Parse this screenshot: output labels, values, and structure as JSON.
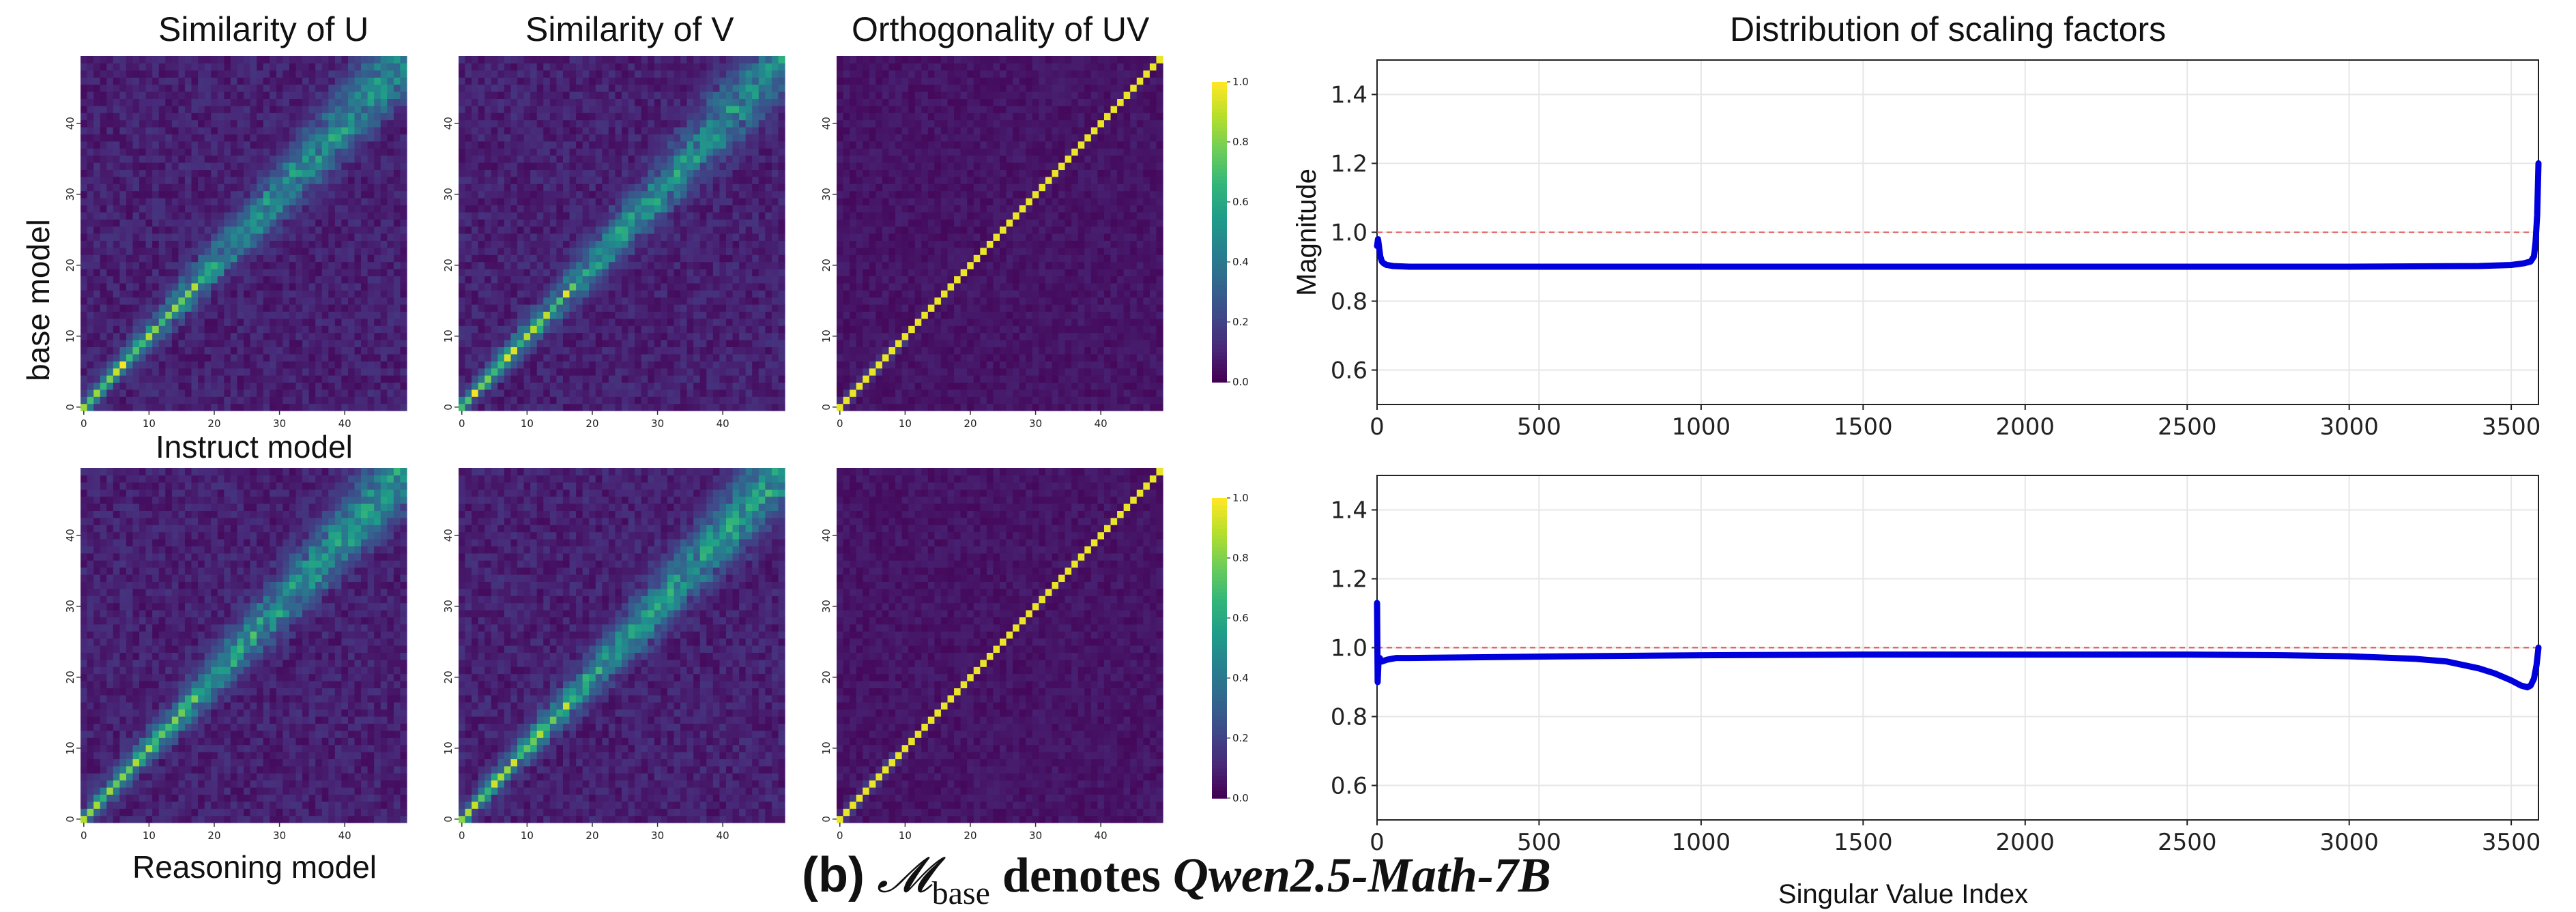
{
  "colorbar_scale": {
    "ticks": [
      "0.0",
      "0.2",
      "0.4",
      "0.6",
      "0.8",
      "1.0"
    ]
  },
  "labels": {
    "row1": "base model",
    "row2": "Instruct model",
    "row3": "Reasoning model"
  },
  "caption": {
    "prefix": "(b)",
    "symbol": "𝓜",
    "subscript": "base",
    "mid": "denotes",
    "model": "Qwen2.5-Math-7B"
  },
  "chart_data": [
    {
      "type": "heatmap",
      "id": "hm_u_top",
      "title": "Similarity of U",
      "ylabel": "base model",
      "xlabel": "",
      "size": 50,
      "xticks": [
        0,
        10,
        20,
        30,
        40
      ],
      "yticks": [
        0,
        10,
        20,
        30,
        40
      ],
      "range": [
        0,
        1
      ],
      "colormap": "viridis",
      "pattern": "noisy diagonal",
      "diagonal_strength": 0.55
    },
    {
      "type": "heatmap",
      "id": "hm_v_top",
      "title": "Similarity of V",
      "size": 50,
      "xticks": [
        0,
        10,
        20,
        30,
        40
      ],
      "yticks": [
        0,
        10,
        20,
        30,
        40
      ],
      "range": [
        0,
        1
      ],
      "colormap": "viridis",
      "pattern": "noisy diagonal",
      "diagonal_strength": 0.55
    },
    {
      "type": "heatmap",
      "id": "hm_uv_top",
      "title": "Orthogonality of UV",
      "size": 50,
      "xticks": [
        0,
        10,
        20,
        30,
        40
      ],
      "yticks": [
        0,
        10,
        20,
        30,
        40
      ],
      "range": [
        0,
        1
      ],
      "colormap": "viridis",
      "pattern": "identity diagonal",
      "diagonal_strength": 1.0
    },
    {
      "type": "heatmap",
      "id": "hm_u_bot",
      "title": "",
      "xlabel": "Reasoning model",
      "ylabel": "Instruct model",
      "size": 50,
      "xticks": [
        0,
        10,
        20,
        30,
        40
      ],
      "yticks": [
        0,
        10,
        20,
        30,
        40
      ],
      "range": [
        0,
        1
      ],
      "colormap": "viridis",
      "pattern": "noisy diagonal",
      "diagonal_strength": 0.6
    },
    {
      "type": "heatmap",
      "id": "hm_v_bot",
      "title": "",
      "size": 50,
      "xticks": [
        0,
        10,
        20,
        30,
        40
      ],
      "yticks": [
        0,
        10,
        20,
        30,
        40
      ],
      "range": [
        0,
        1
      ],
      "colormap": "viridis",
      "pattern": "noisy diagonal",
      "diagonal_strength": 0.6
    },
    {
      "type": "heatmap",
      "id": "hm_uv_bot",
      "title": "",
      "size": 50,
      "xticks": [
        0,
        10,
        20,
        30,
        40
      ],
      "yticks": [
        0,
        10,
        20,
        30,
        40
      ],
      "range": [
        0,
        1
      ],
      "colormap": "viridis",
      "pattern": "identity diagonal",
      "diagonal_strength": 1.0
    },
    {
      "type": "line",
      "id": "line_top",
      "title": "Distribution of scaling factors",
      "xlabel": "",
      "ylabel": "Magnitude",
      "xlim": [
        0,
        3584
      ],
      "ylim": [
        0.5,
        1.5
      ],
      "xticks": [
        0,
        500,
        1000,
        1500,
        2000,
        2500,
        3000,
        3500
      ],
      "yticks": [
        0.6,
        0.8,
        1.0,
        1.2,
        1.4
      ],
      "reference_line": 1.0,
      "series": [
        {
          "name": "scaling factors",
          "x": [
            0,
            3,
            6,
            10,
            15,
            20,
            30,
            50,
            100,
            500,
            1000,
            1500,
            2000,
            2500,
            3000,
            3400,
            3500,
            3540,
            3560,
            3570,
            3575,
            3580,
            3584
          ],
          "y": [
            0.96,
            0.98,
            0.96,
            0.93,
            0.915,
            0.91,
            0.905,
            0.902,
            0.9,
            0.9,
            0.9,
            0.9,
            0.9,
            0.9,
            0.9,
            0.902,
            0.905,
            0.91,
            0.915,
            0.93,
            0.97,
            1.05,
            1.2
          ]
        }
      ]
    },
    {
      "type": "line",
      "id": "line_bot",
      "title": "",
      "xlabel": "Singular Value Index",
      "ylabel": "",
      "xlim": [
        0,
        3584
      ],
      "ylim": [
        0.5,
        1.5
      ],
      "xticks": [
        0,
        500,
        1000,
        1500,
        2000,
        2500,
        3000,
        3500
      ],
      "yticks": [
        0.6,
        0.8,
        1.0,
        1.2,
        1.4
      ],
      "reference_line": 1.0,
      "series": [
        {
          "name": "scaling factors",
          "x": [
            0,
            2,
            4,
            8,
            15,
            30,
            60,
            100,
            300,
            600,
            1000,
            1500,
            2000,
            2500,
            2800,
            3000,
            3200,
            3300,
            3400,
            3450,
            3500,
            3530,
            3550,
            3560,
            3570,
            3578,
            3584
          ],
          "y": [
            1.13,
            0.9,
            0.95,
            0.97,
            0.96,
            0.965,
            0.97,
            0.97,
            0.972,
            0.975,
            0.978,
            0.98,
            0.98,
            0.98,
            0.978,
            0.975,
            0.968,
            0.96,
            0.94,
            0.925,
            0.905,
            0.89,
            0.885,
            0.89,
            0.91,
            0.95,
            1.0
          ]
        }
      ]
    }
  ]
}
